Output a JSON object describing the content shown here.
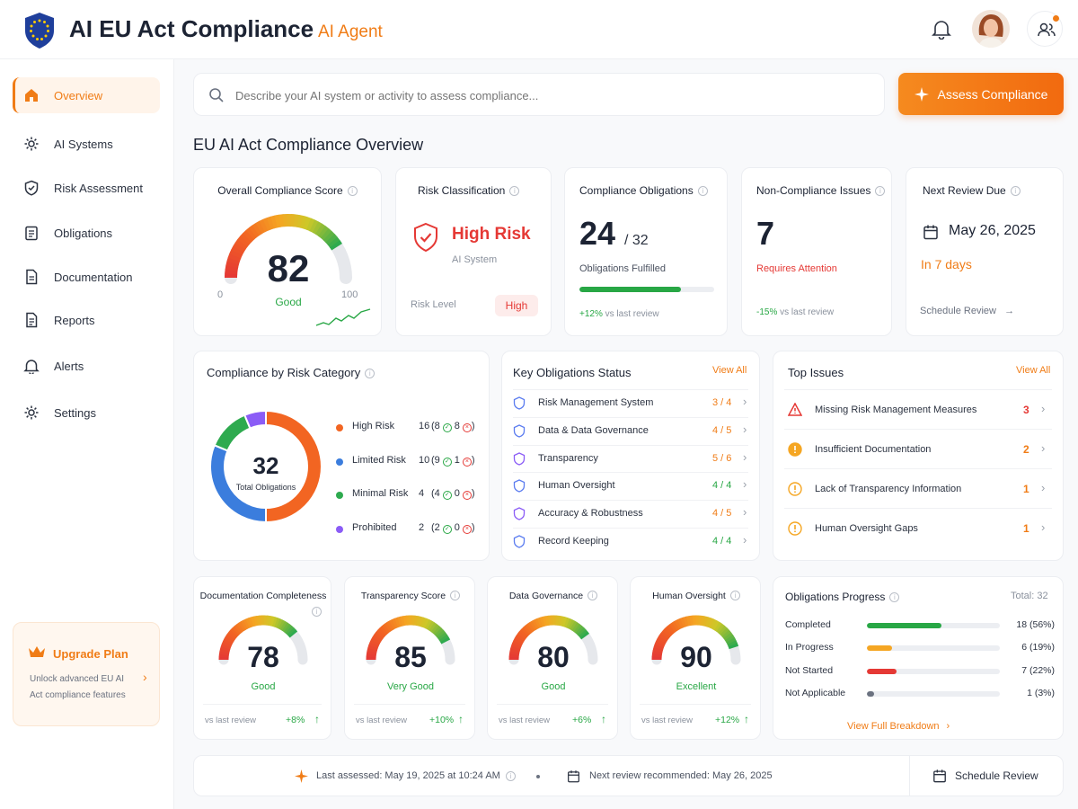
{
  "app": {
    "title": "AI EU Act Compliance",
    "subtitle": "AI Agent"
  },
  "header": {
    "bell_icon": "bell-icon",
    "avatar": "user-avatar",
    "team_icon": "users-icon"
  },
  "sidebar": {
    "items": [
      {
        "label": "Overview",
        "icon": "home-icon",
        "active": true
      },
      {
        "label": "AI Systems",
        "icon": "gear-icon"
      },
      {
        "label": "Risk Assessment",
        "icon": "shield-check-icon"
      },
      {
        "label": "Obligations",
        "icon": "clipboard-icon"
      },
      {
        "label": "Documentation",
        "icon": "document-icon"
      },
      {
        "label": "Reports",
        "icon": "report-icon"
      },
      {
        "label": "Alerts",
        "icon": "bell-icon"
      },
      {
        "label": "Settings",
        "icon": "gear-icon"
      }
    ],
    "upgrade": {
      "title": "Upgrade Plan",
      "desc": "Unlock advanced EU AI Act compliance features"
    }
  },
  "search": {
    "placeholder": "Describe your AI system or activity to assess compliance...",
    "button": "Assess Compliance"
  },
  "page_title": "EU AI Act Compliance Overview",
  "kpis": {
    "score": {
      "title": "Overall Compliance Score",
      "value": "82",
      "min": "0",
      "max": "100",
      "label": "Good",
      "fraction": 0.82
    },
    "risk": {
      "title": "Risk Classification",
      "value": "High Risk",
      "sub": "AI System",
      "level_label": "Risk Level",
      "level": "High"
    },
    "obligations": {
      "title": "Compliance Obligations",
      "value": "24",
      "total": "/ 32",
      "sub": "Obligations Fulfilled",
      "change": "+12%",
      "change_note": "vs last review",
      "fraction": 0.75
    },
    "issues": {
      "title": "Non-Compliance Issues",
      "value": "7",
      "sub": "Requires Attention",
      "change": "-15%",
      "change_note": "vs last review"
    },
    "review": {
      "title": "Next Review Due",
      "date": "May 26, 2025",
      "in": "In 7 days",
      "link": "Schedule Review"
    }
  },
  "risk_category": {
    "title": "Compliance by Risk Category",
    "total": "32",
    "total_label": "Total Obligations",
    "rows": [
      {
        "name": "High Risk",
        "count": "16",
        "ok": "8",
        "bad": "8",
        "color": "#f26522"
      },
      {
        "name": "Limited Risk",
        "count": "10",
        "ok": "9",
        "bad": "1",
        "color": "#3b7ddd"
      },
      {
        "name": "Minimal Risk",
        "count": "4",
        "ok": "4",
        "bad": "0",
        "color": "#2eaa4f"
      },
      {
        "name": "Prohibited",
        "count": "2",
        "ok": "2",
        "bad": "0",
        "color": "#8b5cf6"
      }
    ]
  },
  "chart_data": {
    "type": "pie",
    "categories": [
      "High Risk",
      "Limited Risk",
      "Minimal Risk",
      "Prohibited"
    ],
    "values": [
      16,
      10,
      4,
      2
    ],
    "colors": [
      "#f26522",
      "#3b7ddd",
      "#2eaa4f",
      "#8b5cf6"
    ]
  },
  "obligations_status": {
    "title": "Key Obligations Status",
    "view_all": "View All",
    "rows": [
      {
        "name": "Risk Management System",
        "value": "3 / 4",
        "color": "#f07c16",
        "icon": "shield-icon"
      },
      {
        "name": "Data & Data Governance",
        "value": "4 / 5",
        "color": "#f07c16",
        "icon": "database-icon"
      },
      {
        "name": "Transparency",
        "value": "5 / 6",
        "color": "#f07c16",
        "icon": "eye-icon"
      },
      {
        "name": "Human Oversight",
        "value": "4 / 4",
        "color": "#28a745",
        "icon": "person-icon"
      },
      {
        "name": "Accuracy & Robustness",
        "value": "4 / 5",
        "color": "#f07c16",
        "icon": "check-shield-icon"
      },
      {
        "name": "Record Keeping",
        "value": "4 / 4",
        "color": "#28a745",
        "icon": "document-icon"
      }
    ]
  },
  "top_issues": {
    "title": "Top Issues",
    "view_all": "View All",
    "rows": [
      {
        "name": "Missing Risk Management Measures",
        "count": "3",
        "color": "#e53935"
      },
      {
        "name": "Insufficient Documentation",
        "count": "2",
        "color": "#f07c16"
      },
      {
        "name": "Lack of Transparency Information",
        "count": "1",
        "color": "#f07c16"
      },
      {
        "name": "Human Oversight Gaps",
        "count": "1",
        "color": "#f07c16"
      }
    ]
  },
  "scores": [
    {
      "title": "Documentation Completeness",
      "value": "78",
      "label": "Good",
      "fraction": 0.78,
      "change": "+8%",
      "note": "vs last review"
    },
    {
      "title": "Transparency Score",
      "value": "85",
      "label": "Very Good",
      "fraction": 0.85,
      "change": "+10%",
      "note": "vs last review"
    },
    {
      "title": "Data Governance",
      "value": "80",
      "label": "Good",
      "fraction": 0.8,
      "change": "+6%",
      "note": "vs last review"
    },
    {
      "title": "Human Oversight",
      "value": "90",
      "label": "Excellent",
      "fraction": 0.9,
      "change": "+12%",
      "note": "vs last review"
    }
  ],
  "progress": {
    "title": "Obligations Progress",
    "total": "Total: 32",
    "rows": [
      {
        "name": "Completed",
        "value": "18 (56%)",
        "fraction": 0.56,
        "color": "#28a745"
      },
      {
        "name": "In Progress",
        "value": "6 (19%)",
        "fraction": 0.19,
        "color": "#f5a623"
      },
      {
        "name": "Not Started",
        "value": "7 (22%)",
        "fraction": 0.22,
        "color": "#e53935"
      },
      {
        "name": "Not Applicable",
        "value": "1 (3%)",
        "fraction": 0.03,
        "color": "#6b7280"
      }
    ],
    "link": "View Full Breakdown"
  },
  "footer": {
    "last_assessed": "Last assessed: May 19, 2025 at 10:24 AM",
    "next_review": "Next review recommended: May 26, 2025",
    "button": "Schedule Review"
  }
}
